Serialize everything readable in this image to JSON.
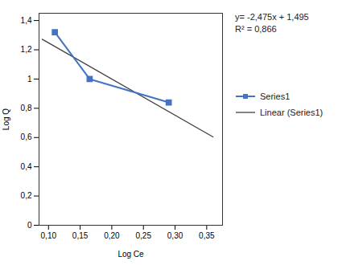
{
  "chart_data": {
    "type": "line",
    "xlabel": "Log Ce",
    "ylabel": "Log Q",
    "series": [
      {
        "name": "Series1",
        "color": "#4472C4",
        "marker": "square",
        "x": [
          0.11,
          0.165,
          0.29
        ],
        "values": [
          1.32,
          1.0,
          0.84
        ]
      },
      {
        "name": "Linear (Series1)",
        "color": "#404040",
        "marker": "none",
        "x": [
          0.09,
          0.36
        ],
        "values": [
          1.27225,
          0.604
        ]
      }
    ],
    "xlim": [
      0.085,
      0.375
    ],
    "ylim": [
      0,
      1.45
    ],
    "xticks": [
      {
        "value": 0.1,
        "label": "0,10"
      },
      {
        "value": 0.15,
        "label": "0,15"
      },
      {
        "value": 0.2,
        "label": "0,20"
      },
      {
        "value": 0.25,
        "label": "0,25"
      },
      {
        "value": 0.3,
        "label": "0,30"
      },
      {
        "value": 0.35,
        "label": "0,35"
      }
    ],
    "yticks": [
      0,
      {
        "value": 0.2,
        "label": "0,2"
      },
      {
        "value": 0.4,
        "label": "0,4"
      },
      {
        "value": 0.6,
        "label": "0,6"
      },
      {
        "value": 0.8,
        "label": "0,8"
      },
      1,
      {
        "value": 1.2,
        "label": "1,2"
      },
      {
        "value": 1.4,
        "label": "1,4"
      }
    ],
    "annotations": [
      "y= -2,475x + 1,495",
      "R² = 0,866"
    ],
    "grid": false,
    "legend": "right"
  }
}
